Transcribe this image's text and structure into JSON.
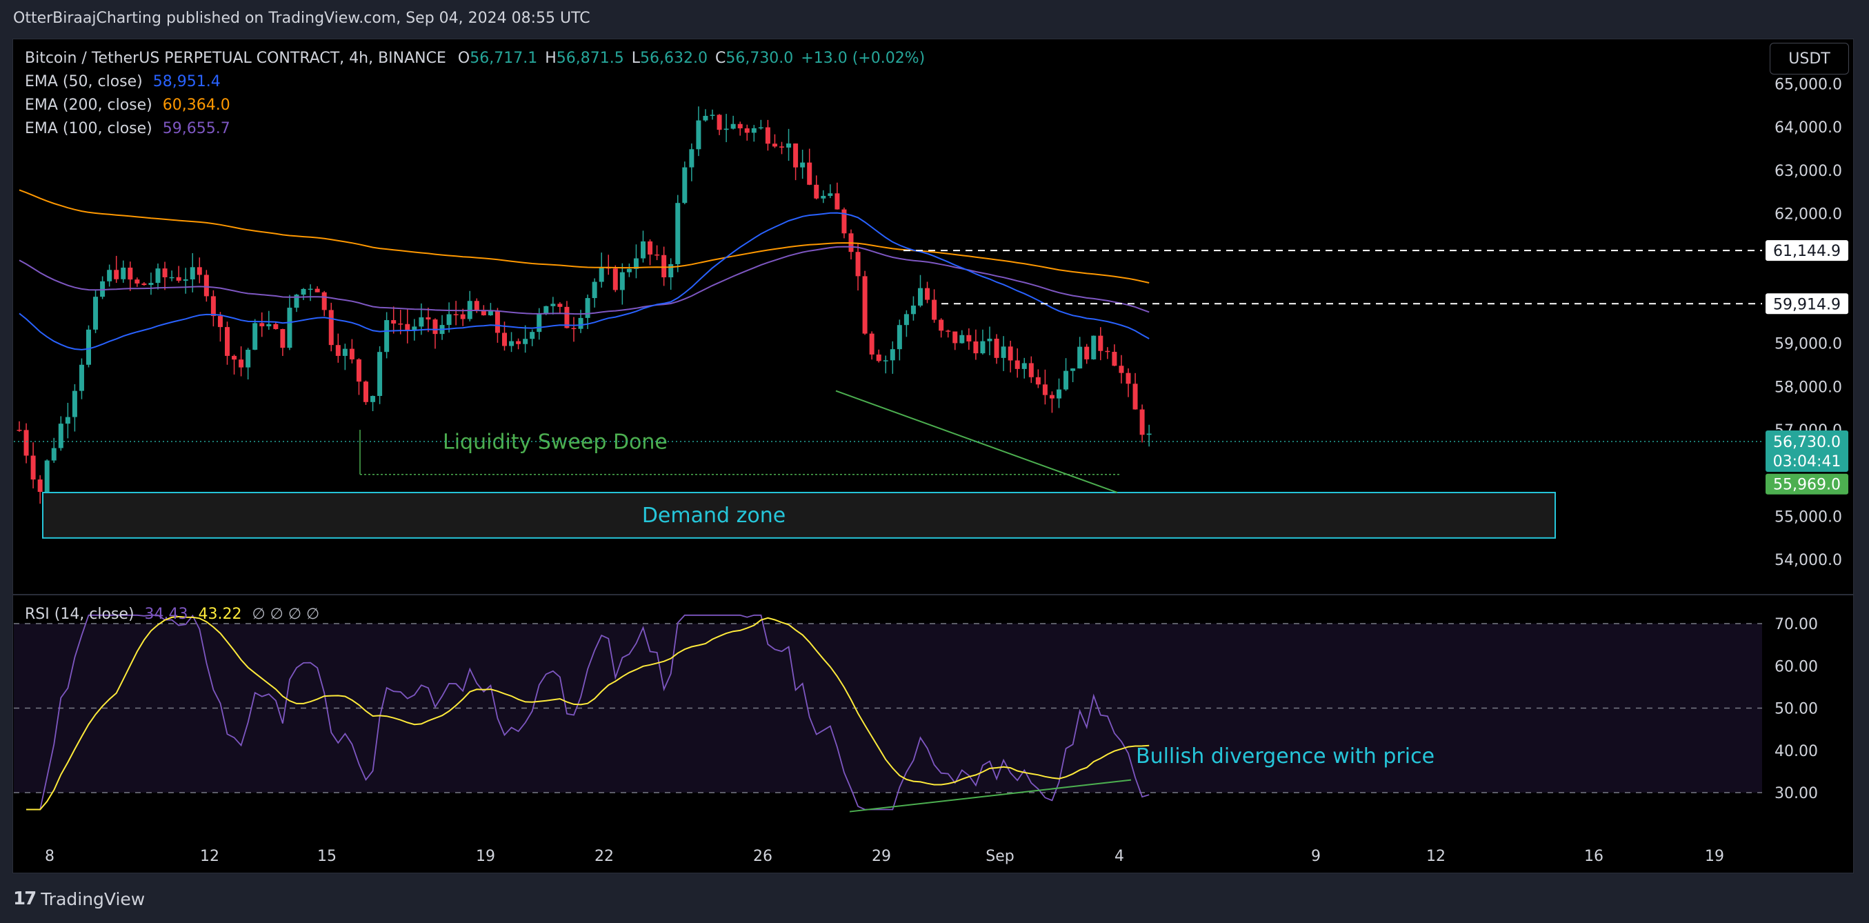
{
  "header": {
    "published_by": "OtterBiraajCharting published on TradingView.com, Sep 04, 2024 08:55 UTC"
  },
  "legend": {
    "symbol": "Bitcoin / TetherUS PERPETUAL CONTRACT, 4h, BINANCE",
    "open_label": "O",
    "open": "56,717.1",
    "high_label": "H",
    "high": "56,871.5",
    "low_label": "L",
    "low": "56,632.0",
    "close_label": "C",
    "close": "56,730.0",
    "change": "+13.0 (+0.02%)",
    "ema50_label": "EMA (50, close)",
    "ema50": "58,951.4",
    "ema200_label": "EMA (200, close)",
    "ema200": "60,364.0",
    "ema100_label": "EMA (100, close)",
    "ema100": "59,655.7"
  },
  "rsi_legend": {
    "label": "RSI (14, close)",
    "rsi": "34.43",
    "ma": "43.22",
    "extras": "∅ ∅ ∅ ∅"
  },
  "currency_button": "USDT",
  "footer": {
    "brand": "TradingView"
  },
  "colors": {
    "up": "#26a69a",
    "down": "#f23645",
    "ema50": "#2962ff",
    "ema100": "#7e57c2",
    "ema200": "#ff9800",
    "rsi": "#7e57c2",
    "rsi_ma": "#ffeb3b",
    "annotation_green": "#4caf50",
    "annotation_cyan": "#26c6da"
  },
  "chart_data": [
    {
      "type": "candlestick",
      "x_ticks": [
        "8",
        "12",
        "15",
        "19",
        "22",
        "26",
        "29",
        "Sep",
        "4",
        "9",
        "12",
        "16",
        "19"
      ],
      "y_ticks": [
        "54,000.0",
        "55,000.0",
        "57,000.0",
        "58,000.0",
        "59,000.0",
        "62,000.0",
        "63,000.0",
        "64,000.0",
        "65,000.0"
      ],
      "price_labels": [
        "61,144.9",
        "59,914.9",
        "56,730.0",
        "03:04:41",
        "55,969.0"
      ],
      "ylim": [
        53700,
        65500
      ],
      "levels": {
        "resistance_1": 61144.9,
        "resistance_2": 59914.9,
        "last": 56730.0,
        "low": 55969.0
      },
      "demand_zone": {
        "low": 54500,
        "high": 55550,
        "label": "Demand zone"
      },
      "annotations": [
        "Liquidity Sweep Done"
      ],
      "series": [
        {
          "name": "EMA (50, close)"
        },
        {
          "name": "EMA (200, close)"
        },
        {
          "name": "EMA (100, close)"
        }
      ]
    },
    {
      "type": "line",
      "y_ticks": [
        "30.00",
        "40.00",
        "50.00",
        "60.00",
        "70.00"
      ],
      "ylim": [
        25,
        73
      ],
      "bands": [
        30,
        50,
        70
      ],
      "annotation": "Bullish divergence with price"
    }
  ]
}
